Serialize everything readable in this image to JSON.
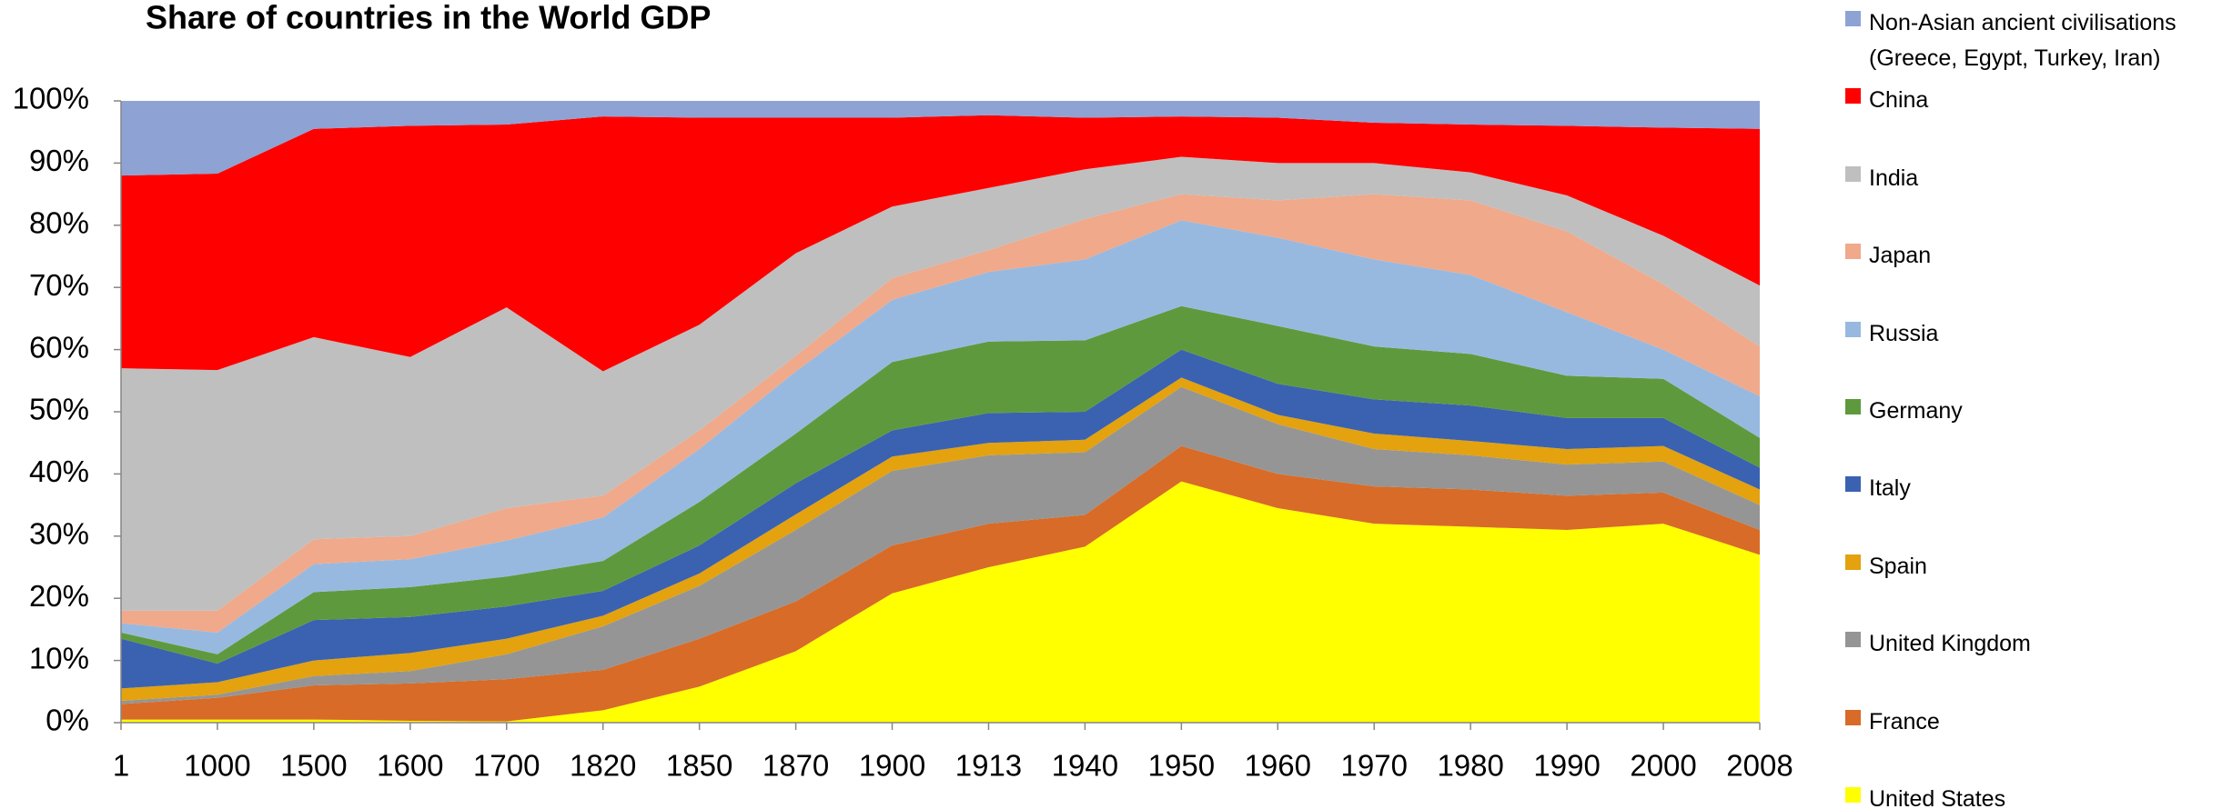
{
  "chart_data": {
    "type": "stacked_area",
    "title": "Share of countries in the World GDP",
    "categories": [
      "1",
      "1000",
      "1500",
      "1600",
      "1700",
      "1820",
      "1850",
      "1870",
      "1900",
      "1913",
      "1940",
      "1950",
      "1960",
      "1970",
      "1980",
      "1990",
      "2000",
      "2008"
    ],
    "series": [
      {
        "name": "United States",
        "color": "#FFFF00",
        "values": [
          0.5,
          0.5,
          0.5,
          0.3,
          0.2,
          2,
          5.8,
          11.5,
          20.8,
          25,
          28.3,
          38.8,
          34.5,
          32,
          31.5,
          31,
          32,
          27
        ]
      },
      {
        "name": "France",
        "color": "#D86B27",
        "values": [
          2.5,
          3.5,
          5.5,
          6,
          6.8,
          6.5,
          7.7,
          8,
          7.7,
          7,
          5.1,
          5.7,
          5.5,
          6,
          6,
          5.5,
          5,
          4
        ]
      },
      {
        "name": "United Kingdom",
        "color": "#959595",
        "values": [
          0.5,
          0.5,
          1.5,
          2,
          4,
          7,
          8.5,
          11.5,
          12,
          11,
          10.1,
          9.5,
          8,
          6,
          5.5,
          5,
          5,
          4
        ]
      },
      {
        "name": "Spain",
        "color": "#E3A20E",
        "values": [
          2,
          2,
          2.5,
          2.9,
          2.5,
          1.7,
          2,
          2.5,
          2.3,
          2,
          2,
          1.5,
          1.5,
          2.5,
          2.3,
          2.5,
          2.5,
          2.5
        ]
      },
      {
        "name": "Italy",
        "color": "#3A62B0",
        "values": [
          8,
          3,
          6.5,
          5.8,
          5.2,
          4,
          4.5,
          5,
          4.2,
          4.8,
          4.5,
          4.5,
          5,
          5.5,
          5.7,
          5,
          4.5,
          3.5
        ]
      },
      {
        "name": "Germany",
        "color": "#5E9A3D",
        "values": [
          1,
          1.5,
          4.5,
          4.8,
          4.8,
          4.8,
          7,
          8,
          11,
          11.5,
          11.5,
          7,
          9.3,
          8.5,
          8.3,
          6.8,
          6.3,
          4.8
        ]
      },
      {
        "name": "Russia",
        "color": "#97B9E0",
        "values": [
          1.5,
          3.5,
          4.5,
          4.5,
          5.8,
          7,
          8.5,
          10,
          10,
          11.2,
          13,
          13.8,
          14.2,
          14,
          12.7,
          10.2,
          4.7,
          6.7
        ]
      },
      {
        "name": "Japan",
        "color": "#F0A98A",
        "values": [
          2,
          3.5,
          4,
          3.7,
          5.2,
          3.5,
          3,
          2.5,
          3.5,
          3.5,
          6.5,
          4.2,
          6,
          10.5,
          12,
          13,
          10.5,
          8
        ]
      },
      {
        "name": "India",
        "color": "#BFBFBF",
        "values": [
          39,
          38.7,
          32.5,
          28.8,
          32.3,
          20,
          17,
          16.5,
          11.5,
          10,
          8,
          6,
          6,
          5,
          4.5,
          5.8,
          7.8,
          9.8
        ]
      },
      {
        "name": "China",
        "color": "#FF0000",
        "values": [
          31,
          31.6,
          33.5,
          37.2,
          29.4,
          41,
          33.3,
          21.8,
          14.3,
          11.7,
          8.3,
          6.5,
          7.3,
          6.5,
          7.7,
          11.2,
          17.4,
          25.2
        ]
      },
      {
        "name": "Non-Asian ancient civilisations (Greece, Egypt, Turkey, Iran)",
        "color": "#8FA2D4",
        "values": [
          12,
          11.7,
          4.5,
          4,
          3.8,
          2.5,
          2.7,
          2.7,
          2.7,
          2.3,
          2.7,
          2.5,
          2.7,
          3.5,
          3.8,
          4,
          4.3,
          4.5
        ]
      }
    ],
    "ylim": [
      0,
      100
    ],
    "yticks": [
      {
        "value": 0,
        "label": "0%"
      },
      {
        "value": 10,
        "label": "10%"
      },
      {
        "value": 20,
        "label": "20%"
      },
      {
        "value": 30,
        "label": "30%"
      },
      {
        "value": 40,
        "label": "40%"
      },
      {
        "value": 50,
        "label": "50%"
      },
      {
        "value": 60,
        "label": "60%"
      },
      {
        "value": 70,
        "label": "70%"
      },
      {
        "value": 80,
        "label": "80%"
      },
      {
        "value": 90,
        "label": "90%"
      },
      {
        "value": 100,
        "label": "100%"
      }
    ],
    "grid": false,
    "legend": "right"
  }
}
